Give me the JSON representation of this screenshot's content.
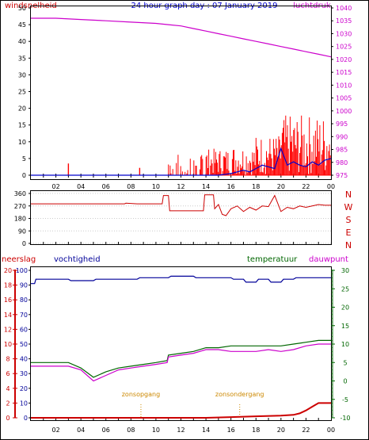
{
  "title": "24 hour graph day : 07 January 2019",
  "colors": {
    "wind": "#ff0000",
    "wind_avg": "#0000cc",
    "pressure": "#cc00cc",
    "direction": "#cc0000",
    "rain": "#cc0000",
    "humidity": "#000099",
    "temperature": "#006600",
    "dewpoint": "#cc00cc",
    "sun": "#cc8800",
    "axis": "#000000",
    "grid": "#cccccc"
  },
  "chart_data": [
    {
      "type": "line",
      "panel": "wind-pressure",
      "title": "24 hour graph day : 07 January 2019",
      "left_label": "windsnelheid",
      "right_label": "luchtdruk",
      "x_ticks": [
        "02",
        "04",
        "06",
        "08",
        "10",
        "12",
        "14",
        "16",
        "18",
        "20",
        "22",
        "00"
      ],
      "x_range": [
        0,
        24
      ],
      "left_ylim": [
        0,
        50
      ],
      "left_ticks": [
        "0",
        "5",
        "10",
        "15",
        "20",
        "25",
        "30",
        "35",
        "40",
        "45",
        "50"
      ],
      "right_ylim": [
        975,
        1040
      ],
      "right_ticks": [
        "975",
        "980",
        "985",
        "990",
        "995",
        "1000",
        "1005",
        "1010",
        "1015",
        "1020",
        "1025",
        "1030",
        "1035",
        "1040"
      ],
      "series": [
        {
          "key": "pressure",
          "axis": "right",
          "x": [
            0,
            2,
            4,
            6,
            8,
            10,
            11,
            12,
            13,
            14,
            15,
            16,
            17,
            18,
            19,
            20,
            21,
            22,
            23,
            24
          ],
          "y": [
            1036,
            1036,
            1035.5,
            1035,
            1034.5,
            1034,
            1033.5,
            1033,
            1032,
            1031,
            1030,
            1029,
            1028,
            1027,
            1026,
            1025,
            1024,
            1023,
            1022,
            1021
          ]
        },
        {
          "key": "wind_avg",
          "axis": "left",
          "x": [
            0,
            11,
            15,
            16,
            16.5,
            17,
            17.5,
            18,
            18.5,
            19,
            19.5,
            20,
            20.5,
            21,
            21.5,
            22,
            22.5,
            23,
            23.5,
            24
          ],
          "y": [
            0,
            0,
            0,
            0.5,
            1,
            1.5,
            1,
            2,
            3,
            2.5,
            2,
            8,
            3,
            4,
            3,
            2.5,
            4,
            3,
            4.5,
            5
          ]
        }
      ]
    },
    {
      "type": "line",
      "panel": "wind-direction",
      "right_ticks": [
        "N",
        "W",
        "S",
        "E",
        "N"
      ],
      "left_ylim": [
        0,
        360
      ],
      "left_ticks": [
        "0",
        "90",
        "180",
        "270",
        "360"
      ],
      "x_range": [
        0,
        24
      ],
      "series": [
        {
          "key": "direction",
          "x": [
            0,
            7.5,
            7.6,
            8.5,
            10.5,
            10.6,
            11,
            11.1,
            13.8,
            13.9,
            14.6,
            14.7,
            15,
            15.3,
            15.6,
            16,
            16.5,
            17,
            17.5,
            18,
            18.5,
            19,
            19.5,
            20,
            20.5,
            21,
            21.5,
            22,
            22.5,
            23,
            23.5,
            24
          ],
          "y": [
            285,
            285,
            290,
            285,
            285,
            345,
            345,
            235,
            235,
            350,
            350,
            250,
            280,
            210,
            200,
            250,
            270,
            230,
            260,
            240,
            270,
            265,
            345,
            230,
            260,
            250,
            270,
            260,
            270,
            280,
            275,
            275
          ]
        }
      ]
    },
    {
      "type": "line",
      "panel": "rain-humidity-temperature",
      "left_labels": [
        "neerslag",
        "vochtigheid"
      ],
      "right_labels": [
        "temperatuur",
        "dauwpunt"
      ],
      "x_ticks": [
        "02",
        "04",
        "06",
        "08",
        "10",
        "12",
        "14",
        "16",
        "18",
        "20",
        "22",
        "00"
      ],
      "x_range": [
        0,
        24
      ],
      "rain_ylim": [
        0,
        20
      ],
      "rain_ticks": [
        "0",
        "2",
        "4",
        "6",
        "8",
        "10",
        "12",
        "14",
        "16",
        "18",
        "20"
      ],
      "humidity_ylim": [
        0,
        100
      ],
      "humidity_ticks": [
        "0",
        "10",
        "20",
        "30",
        "40",
        "50",
        "60",
        "70",
        "80",
        "90",
        "100"
      ],
      "temp_ylim": [
        -10,
        30
      ],
      "temp_ticks": [
        "-10",
        "-5",
        "0",
        "5",
        "10",
        "15",
        "20",
        "25",
        "30"
      ],
      "markers": [
        {
          "label": "zonsopgang",
          "x": 8.8
        },
        {
          "label": "zonsondergang",
          "x": 16.7
        }
      ],
      "series": [
        {
          "key": "humidity",
          "axis": "humidity",
          "x": [
            0,
            0.3,
            0.4,
            3,
            3.2,
            5,
            5.2,
            8.5,
            8.7,
            11,
            11.2,
            13,
            13.2,
            16,
            16.2,
            17,
            17.2,
            18,
            18.2,
            19,
            19.2,
            20,
            20.2,
            21,
            21.2,
            24
          ],
          "y": [
            91,
            91,
            94,
            94,
            93,
            93,
            94,
            94,
            95,
            95,
            96,
            96,
            95,
            95,
            94,
            94,
            92,
            92,
            94,
            94,
            92,
            92,
            94,
            94,
            95,
            95
          ]
        },
        {
          "key": "temperature",
          "axis": "temperature",
          "x": [
            0,
            3,
            4,
            5,
            6,
            7,
            8,
            9,
            10,
            10.9,
            11,
            12,
            13,
            14,
            15,
            16,
            17,
            18,
            19,
            20,
            21,
            22,
            23,
            24
          ],
          "y": [
            5,
            5,
            3.5,
            1,
            2.5,
            3.5,
            4,
            4.5,
            5,
            5.5,
            7,
            7.5,
            8,
            9,
            9,
            9.5,
            9.5,
            9.5,
            9.5,
            9.5,
            10,
            10.5,
            11,
            11
          ]
        },
        {
          "key": "dewpoint",
          "axis": "temperature",
          "x": [
            0,
            3,
            4,
            5,
            6,
            7,
            8,
            9,
            10,
            10.9,
            11,
            12,
            13,
            14,
            15,
            16,
            17,
            18,
            19,
            20,
            21,
            22,
            23,
            24
          ],
          "y": [
            4,
            4,
            3,
            0,
            1.5,
            3,
            3.5,
            4,
            4.5,
            5,
            6.5,
            7,
            7.5,
            8.5,
            8.5,
            8,
            8,
            8,
            8.5,
            8,
            8.5,
            9.5,
            10,
            10
          ]
        },
        {
          "key": "rain",
          "axis": "rain",
          "x": [
            0,
            14,
            16,
            18,
            20,
            21,
            21.5,
            22,
            22.5,
            23,
            23.2,
            24
          ],
          "y": [
            0,
            0,
            0.1,
            0.2,
            0.3,
            0.4,
            0.6,
            1,
            1.5,
            2,
            2,
            2
          ]
        }
      ]
    }
  ]
}
